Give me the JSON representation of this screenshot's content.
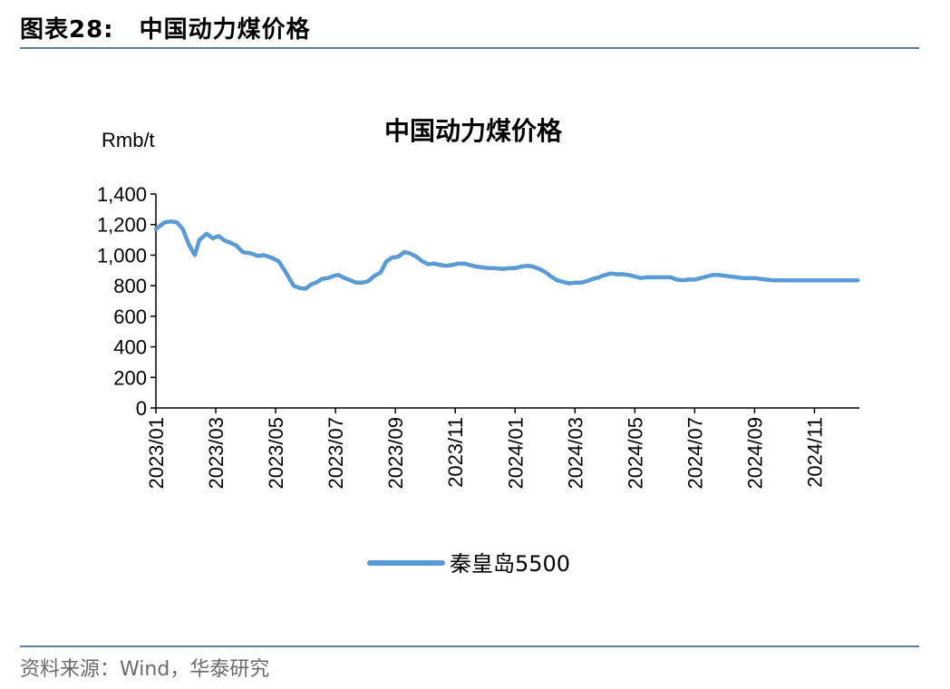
{
  "figure": {
    "label": "图表28:",
    "title": "中国动力煤价格",
    "source": "资料来源：Wind，华泰研究"
  },
  "colors": {
    "series": "#5b9bd5",
    "rule": "#5b7f9f"
  },
  "chart_data": {
    "type": "line",
    "title": "中国动力煤价格",
    "ylabel": "Rmb/t",
    "xlabel": "",
    "ylim": [
      0,
      1400
    ],
    "yticks": [
      0,
      200,
      400,
      600,
      800,
      1000,
      1200,
      1400
    ],
    "ytick_labels": [
      "0",
      "200",
      "400",
      "600",
      "800",
      "1,000",
      "1,200",
      "1,400"
    ],
    "xticks": [
      "2023/01",
      "2023/03",
      "2023/05",
      "2023/07",
      "2023/09",
      "2023/11",
      "2024/01",
      "2024/03",
      "2024/05",
      "2024/07",
      "2024/09",
      "2024/11"
    ],
    "x_range_months": [
      0,
      23.5
    ],
    "grid": false,
    "legend": "bottom",
    "series": [
      {
        "name": "秦皇岛5500",
        "x": [
          0,
          0.12,
          0.3,
          0.5,
          0.7,
          0.9,
          1.1,
          1.3,
          1.45,
          1.7,
          1.9,
          2.1,
          2.3,
          2.5,
          2.7,
          2.9,
          3.2,
          3.4,
          3.6,
          3.9,
          4.1,
          4.3,
          4.6,
          4.8,
          5.0,
          5.2,
          5.4,
          5.55,
          5.75,
          5.95,
          6.1,
          6.3,
          6.5,
          6.7,
          6.9,
          7.1,
          7.3,
          7.5,
          7.7,
          7.9,
          8.1,
          8.3,
          8.5,
          8.7,
          8.9,
          9.1,
          9.3,
          9.5,
          9.7,
          9.9,
          10.1,
          10.3,
          10.5,
          10.7,
          10.9,
          11.1,
          11.3,
          11.6,
          11.8,
          12.0,
          12.2,
          12.4,
          12.6,
          12.8,
          13.0,
          13.2,
          13.4,
          13.6,
          13.8,
          14.0,
          14.2,
          14.4,
          14.6,
          14.8,
          15.0,
          15.2,
          15.4,
          15.6,
          15.8,
          16.0,
          16.2,
          16.4,
          16.6,
          16.8,
          17.0,
          17.2,
          17.4,
          17.6,
          17.8,
          18.0,
          18.2,
          18.4,
          18.6,
          18.8,
          19.0,
          19.2,
          19.4,
          19.6,
          19.8,
          20.0,
          20.2,
          20.4,
          20.6,
          20.8,
          21.0,
          21.2,
          21.4,
          21.6,
          21.8,
          22.0,
          22.2,
          22.4,
          22.6,
          22.8,
          23.0,
          23.2,
          23.45
        ],
        "values": [
          1170,
          1190,
          1215,
          1220,
          1215,
          1170,
          1070,
          1000,
          1100,
          1140,
          1110,
          1125,
          1095,
          1080,
          1060,
          1020,
          1010,
          995,
          1000,
          980,
          960,
          900,
          800,
          785,
          780,
          810,
          825,
          845,
          850,
          865,
          870,
          850,
          835,
          820,
          820,
          830,
          865,
          885,
          960,
          985,
          990,
          1020,
          1010,
          990,
          960,
          940,
          945,
          935,
          930,
          935,
          945,
          945,
          935,
          925,
          920,
          915,
          915,
          910,
          915,
          915,
          925,
          930,
          925,
          910,
          890,
          860,
          835,
          825,
          815,
          820,
          820,
          830,
          845,
          855,
          870,
          880,
          875,
          875,
          870,
          860,
          850,
          855,
          855,
          855,
          855,
          855,
          840,
          835,
          840,
          840,
          850,
          860,
          870,
          870,
          865,
          860,
          855,
          850,
          850,
          850,
          845,
          840,
          835,
          835,
          835,
          835,
          835,
          835,
          835,
          835,
          835,
          835,
          835,
          835,
          835,
          835,
          835
        ]
      }
    ]
  }
}
